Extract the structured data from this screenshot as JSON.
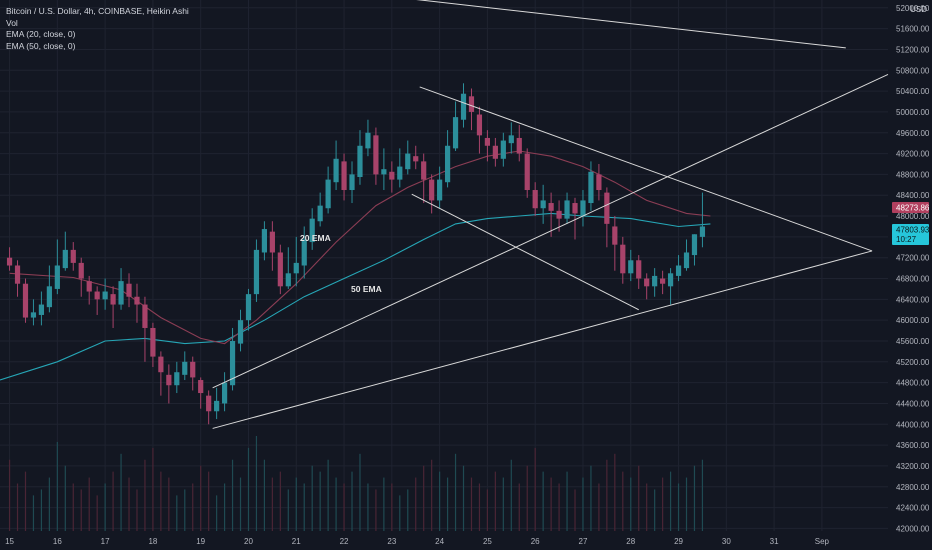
{
  "legend": {
    "title": "Bitcoin / U.S. Dollar, 4h, COINBASE, Heikin Ashi",
    "vol": "Vol",
    "ema20": "EMA (20, close, 0)",
    "ema50": "EMA (50, close, 0)"
  },
  "currency": "USD",
  "annotations": {
    "ema20": "20 EMA",
    "ema50": "50 EMA"
  },
  "price_tags": {
    "ema_value": "48273.86",
    "last_price": "47803.93",
    "countdown": "10:27",
    "ema_color": "#b2405f",
    "last_color": "#26c6da"
  },
  "colors": {
    "bg": "#131722",
    "grid": "#1f2330",
    "up": "#2c8f9b",
    "down": "#a8436a",
    "ema20": "#8b3d54",
    "ema50": "#26a6b6",
    "trendline": "#d9d9d9",
    "axis_text": "#b2b5be"
  },
  "chart_data": {
    "type": "candlestick",
    "symbol": "Bitcoin / U.S. Dollar",
    "interval": "4h",
    "exchange": "COINBASE",
    "candle_style": "Heikin Ashi",
    "y_ticks": [
      52000,
      51600,
      51200,
      50800,
      50400,
      50000,
      49600,
      49200,
      48800,
      48400,
      48000,
      47600,
      47200,
      46800,
      46400,
      46000,
      45600,
      45200,
      44800,
      44400,
      44000,
      43600,
      43200,
      42800,
      42400,
      42000
    ],
    "y_tick_labels": [
      "52000.00",
      "51600.00",
      "51200.00",
      "50800.00",
      "50400.00",
      "50000.00",
      "49600.00",
      "49200.00",
      "48800.00",
      "48400.00",
      "48000.00",
      "47600.00",
      "47200.00",
      "46800.00",
      "46400.00",
      "46000.00",
      "45600.00",
      "45200.00",
      "44800.00",
      "44400.00",
      "44000.00",
      "43600.00",
      "43200.00",
      "42800.00",
      "42400.00",
      "42000.00"
    ],
    "ylim": [
      41950,
      52150
    ],
    "x_ticks": [
      {
        "t": 0,
        "label": "15"
      },
      {
        "t": 6,
        "label": "16"
      },
      {
        "t": 12,
        "label": "17"
      },
      {
        "t": 18,
        "label": "18"
      },
      {
        "t": 24,
        "label": "19"
      },
      {
        "t": 30,
        "label": "20"
      },
      {
        "t": 36,
        "label": "21"
      },
      {
        "t": 42,
        "label": "22"
      },
      {
        "t": 48,
        "label": "23"
      },
      {
        "t": 54,
        "label": "24"
      },
      {
        "t": 60,
        "label": "25"
      },
      {
        "t": 66,
        "label": "26"
      },
      {
        "t": 72,
        "label": "27"
      },
      {
        "t": 78,
        "label": "28"
      },
      {
        "t": 84,
        "label": "29"
      },
      {
        "t": 90,
        "label": "30"
      },
      {
        "t": 96,
        "label": "31"
      },
      {
        "t": 102,
        "label": "Sep"
      }
    ],
    "xlim": [
      -1.2,
      110.3
    ],
    "candles": [
      [
        47200,
        47050,
        46950,
        47400
      ],
      [
        47050,
        46700,
        46450,
        47150
      ],
      [
        46700,
        46050,
        45950,
        46800
      ],
      [
        46050,
        46150,
        45900,
        46400
      ],
      [
        46100,
        46300,
        45900,
        46550
      ],
      [
        46250,
        46650,
        46150,
        47050
      ],
      [
        46600,
        47050,
        46500,
        47550
      ],
      [
        47000,
        47350,
        46950,
        47700
      ],
      [
        47350,
        47100,
        46950,
        47500
      ],
      [
        47100,
        46800,
        46450,
        47200
      ],
      [
        46750,
        46550,
        46300,
        46850
      ],
      [
        46550,
        46400,
        46100,
        46650
      ],
      [
        46400,
        46550,
        46200,
        46800
      ],
      [
        46500,
        46300,
        45850,
        46650
      ],
      [
        46300,
        46750,
        46200,
        47000
      ],
      [
        46700,
        46450,
        46250,
        46900
      ],
      [
        46450,
        46300,
        45950,
        46700
      ],
      [
        46300,
        45850,
        45200,
        46450
      ],
      [
        45850,
        45300,
        45100,
        45950
      ],
      [
        45300,
        45000,
        44550,
        45400
      ],
      [
        44950,
        44750,
        44400,
        45150
      ],
      [
        44750,
        45000,
        44600,
        45200
      ],
      [
        44950,
        45200,
        44850,
        45400
      ],
      [
        45200,
        44900,
        44650,
        45300
      ],
      [
        44850,
        44600,
        44300,
        44900
      ],
      [
        44550,
        44250,
        44000,
        44650
      ],
      [
        44250,
        44450,
        44100,
        44700
      ],
      [
        44400,
        44800,
        44250,
        45000
      ],
      [
        44750,
        45600,
        44650,
        45850
      ],
      [
        45550,
        46000,
        45400,
        46200
      ],
      [
        46000,
        46500,
        45800,
        46600
      ],
      [
        46500,
        47350,
        46350,
        47550
      ],
      [
        47300,
        47750,
        47150,
        47900
      ],
      [
        47700,
        47300,
        46950,
        47900
      ],
      [
        47300,
        46650,
        46500,
        47450
      ],
      [
        46650,
        46900,
        46600,
        47400
      ],
      [
        46900,
        47100,
        46650,
        47600
      ],
      [
        47050,
        47550,
        46800,
        47800
      ],
      [
        47500,
        47950,
        47350,
        48150
      ],
      [
        47900,
        48200,
        47800,
        48450
      ],
      [
        48150,
        48700,
        48050,
        48950
      ],
      [
        48650,
        49100,
        48500,
        49450
      ],
      [
        49050,
        48500,
        48300,
        49200
      ],
      [
        48500,
        48800,
        48250,
        49050
      ],
      [
        48750,
        49350,
        48600,
        49650
      ],
      [
        49300,
        49600,
        49150,
        49850
      ],
      [
        49550,
        48800,
        48600,
        49700
      ],
      [
        48800,
        48900,
        48500,
        49300
      ],
      [
        48850,
        48700,
        48450,
        49050
      ],
      [
        48700,
        48950,
        48550,
        49300
      ],
      [
        48900,
        49200,
        48800,
        49450
      ],
      [
        49150,
        49050,
        48900,
        49350
      ],
      [
        49050,
        48700,
        48250,
        49200
      ],
      [
        48700,
        48300,
        48050,
        48800
      ],
      [
        48300,
        48700,
        48150,
        48950
      ],
      [
        48650,
        49350,
        48550,
        49650
      ],
      [
        49300,
        49900,
        49250,
        50200
      ],
      [
        49850,
        50350,
        49700,
        50550
      ],
      [
        50300,
        50000,
        49650,
        50450
      ],
      [
        49950,
        49550,
        49200,
        50100
      ],
      [
        49500,
        49350,
        49050,
        49650
      ],
      [
        49350,
        49100,
        48950,
        49500
      ],
      [
        49100,
        49450,
        48950,
        49600
      ],
      [
        49400,
        49550,
        49200,
        49800
      ],
      [
        49500,
        49200,
        49050,
        49750
      ],
      [
        49200,
        48500,
        48350,
        49300
      ],
      [
        48500,
        48150,
        48000,
        48650
      ],
      [
        48150,
        48300,
        47850,
        48600
      ],
      [
        48250,
        48100,
        47600,
        48450
      ],
      [
        48100,
        47950,
        47700,
        48300
      ],
      [
        47950,
        48300,
        47850,
        48450
      ],
      [
        48250,
        48050,
        47550,
        48350
      ],
      [
        48000,
        48300,
        47800,
        48500
      ],
      [
        48250,
        48850,
        48100,
        49050
      ],
      [
        48800,
        48500,
        48300,
        49000
      ],
      [
        48450,
        47850,
        47400,
        48550
      ],
      [
        47800,
        47450,
        46950,
        48000
      ],
      [
        47450,
        46900,
        46700,
        47600
      ],
      [
        46900,
        47150,
        46750,
        47350
      ],
      [
        47150,
        46800,
        46600,
        47250
      ],
      [
        46800,
        46650,
        46400,
        46900
      ],
      [
        46650,
        46850,
        46450,
        47000
      ],
      [
        46800,
        46700,
        46500,
        46950
      ],
      [
        46650,
        46900,
        46300,
        47000
      ],
      [
        46850,
        47050,
        46750,
        47250
      ],
      [
        47000,
        47300,
        46950,
        47550
      ],
      [
        47250,
        47650,
        47050,
        47650
      ],
      [
        47600,
        47800,
        47400,
        48450
      ]
    ],
    "volume": [
      12,
      8,
      10,
      6,
      7,
      9,
      15,
      11,
      8,
      7,
      9,
      6,
      8,
      10,
      13,
      9,
      7,
      12,
      14,
      10,
      9,
      6,
      7,
      8,
      11,
      10,
      6,
      8,
      12,
      9,
      14,
      16,
      12,
      9,
      10,
      7,
      9,
      8,
      11,
      10,
      12,
      9,
      8,
      10,
      13,
      8,
      7,
      9,
      8,
      6,
      7,
      9,
      11,
      12,
      10,
      9,
      13,
      11,
      9,
      8,
      7,
      10,
      9,
      12,
      8,
      11,
      14,
      10,
      9,
      8,
      10,
      7,
      9,
      11,
      8,
      12,
      13,
      10,
      9,
      11,
      8,
      7,
      9,
      10,
      8,
      9,
      11,
      12
    ],
    "ema20": [
      [
        0,
        46900
      ],
      [
        8,
        46820
      ],
      [
        14,
        46580
      ],
      [
        19,
        46050
      ],
      [
        24,
        45650
      ],
      [
        27,
        45550
      ],
      [
        31,
        46000
      ],
      [
        36,
        46700
      ],
      [
        41,
        47500
      ],
      [
        46,
        48200
      ],
      [
        50,
        48550
      ],
      [
        56,
        48950
      ],
      [
        60,
        49150
      ],
      [
        64,
        49250
      ],
      [
        68,
        49150
      ],
      [
        72,
        48950
      ],
      [
        76,
        48650
      ],
      [
        80,
        48300
      ],
      [
        85,
        48050
      ],
      [
        88,
        48000
      ]
    ],
    "ema50": [
      [
        -1.2,
        44850
      ],
      [
        6,
        45200
      ],
      [
        12,
        45600
      ],
      [
        17,
        45650
      ],
      [
        22,
        45550
      ],
      [
        27,
        45600
      ],
      [
        32,
        46000
      ],
      [
        37,
        46450
      ],
      [
        42,
        46800
      ],
      [
        47,
        47150
      ],
      [
        52,
        47550
      ],
      [
        56,
        47850
      ],
      [
        60,
        47950
      ],
      [
        64,
        48000
      ],
      [
        68,
        48050
      ],
      [
        72,
        48000
      ],
      [
        78,
        47950
      ],
      [
        84,
        47800
      ],
      [
        88,
        47850
      ]
    ],
    "trendlines": [
      [
        [
          25.5,
          43920
        ],
        [
          108.3,
          47330
        ]
      ],
      [
        [
          51.5,
          50480
        ],
        [
          108.3,
          47330
        ]
      ],
      [
        [
          50.5,
          48420
        ],
        [
          79,
          46200
        ]
      ],
      [
        [
          25.5,
          44700
        ],
        [
          110.3,
          50720
        ]
      ],
      [
        [
          25.5,
          52600
        ],
        [
          105,
          51230
        ]
      ]
    ]
  }
}
